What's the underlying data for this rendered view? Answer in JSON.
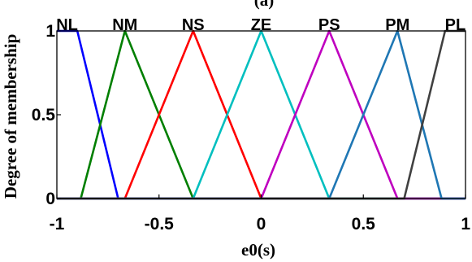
{
  "chart_data": {
    "type": "line",
    "title": "(a)",
    "xlabel": "e0(s)",
    "ylabel": "Degree of membership",
    "xlim": [
      -1,
      1
    ],
    "ylim": [
      0,
      1
    ],
    "xticks": [
      "-1",
      "-0.5",
      "0",
      "0.5",
      "1"
    ],
    "yticks": [
      "0",
      "0.5",
      "1"
    ],
    "grid": false,
    "series": [
      {
        "name": "NL",
        "color": "#0000ff",
        "x": [
          -1,
          -0.9,
          -0.7,
          1
        ],
        "y": [
          1,
          1,
          0,
          0
        ]
      },
      {
        "name": "NM",
        "color": "#007f00",
        "x": [
          -1,
          -0.883,
          -0.667,
          -0.333,
          1
        ],
        "y": [
          0,
          0,
          1,
          0,
          0
        ]
      },
      {
        "name": "NS",
        "color": "#ff0000",
        "x": [
          -1,
          -0.667,
          -0.333,
          0,
          1
        ],
        "y": [
          0,
          0,
          1,
          0,
          0
        ]
      },
      {
        "name": "ZE",
        "color": "#00bfbf",
        "x": [
          -1,
          -0.333,
          0,
          0.333,
          1
        ],
        "y": [
          0,
          0,
          1,
          0,
          0
        ]
      },
      {
        "name": "PS",
        "color": "#bf00bf",
        "x": [
          -1,
          0,
          0.333,
          0.667,
          1
        ],
        "y": [
          0,
          0,
          1,
          0,
          0
        ]
      },
      {
        "name": "PM",
        "color": "#1f77b4",
        "x": [
          -1,
          0.333,
          0.667,
          0.883,
          1
        ],
        "y": [
          0,
          0,
          1,
          0,
          0
        ]
      },
      {
        "name": "PL",
        "color": "#404040",
        "x": [
          -1,
          0.7,
          0.9,
          1
        ],
        "y": [
          0,
          0,
          1,
          1
        ]
      }
    ]
  }
}
